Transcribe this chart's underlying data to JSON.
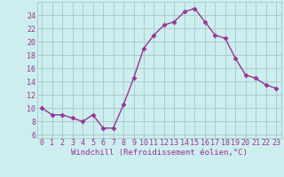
{
  "hours": [
    0,
    1,
    2,
    3,
    4,
    5,
    6,
    7,
    8,
    9,
    10,
    11,
    12,
    13,
    14,
    15,
    16,
    17,
    18,
    19,
    20,
    21,
    22,
    23
  ],
  "values": [
    10,
    9,
    9,
    8.5,
    8,
    9,
    7,
    7,
    10.5,
    14.5,
    19,
    21,
    22.5,
    23,
    24.5,
    25,
    23,
    21,
    20.5,
    17.5,
    15,
    14.5,
    13.5,
    13
  ],
  "line_color": "#993399",
  "marker_color": "#993399",
  "bg_color": "#cceeee",
  "grid_color": "#aacccc",
  "xlabel": "Windchill (Refroidissement éolien,°C)",
  "ylabel_ticks": [
    6,
    8,
    10,
    12,
    14,
    16,
    18,
    20,
    22,
    24
  ],
  "ylim": [
    5.5,
    26
  ],
  "xlim": [
    -0.5,
    23.5
  ],
  "xlabel_fontsize": 6.5,
  "tick_fontsize": 6.0,
  "line_width": 1.0,
  "marker_size": 2.5
}
